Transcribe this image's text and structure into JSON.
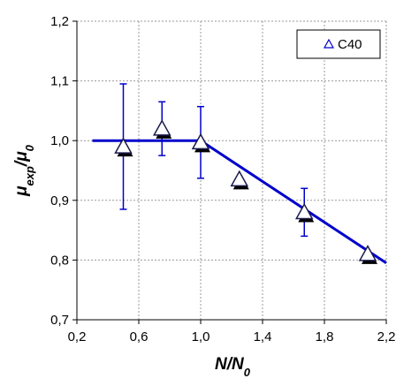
{
  "chart_data": {
    "type": "scatter",
    "xlabel": [
      "N/N",
      "0"
    ],
    "ylabel": [
      "μ",
      "exp",
      "/μ",
      "0"
    ],
    "series": [
      {
        "name": "C40",
        "color": "#0000cc",
        "x": [
          0.5,
          0.75,
          1.0,
          1.25,
          1.67,
          2.08
        ],
        "values": [
          0.99,
          1.02,
          0.997,
          0.935,
          0.88,
          0.81
        ],
        "errors": [
          0.105,
          0.045,
          0.06,
          null,
          0.04,
          null
        ]
      }
    ],
    "fit": {
      "x": [
        0.3,
        1.0,
        2.2
      ],
      "values": [
        1.0,
        1.0,
        0.795
      ],
      "color": "#0000cc"
    },
    "xlim": [
      0.2,
      2.2
    ],
    "xticks": [
      {
        "value": 0.2,
        "label": "0,2"
      },
      {
        "value": 0.6,
        "label": "0,6"
      },
      {
        "value": 1.0,
        "label": "1,0"
      },
      {
        "value": 1.4,
        "label": "1,4"
      },
      {
        "value": 1.8,
        "label": "1,8"
      },
      {
        "value": 2.2,
        "label": "2,2"
      }
    ],
    "ylim": [
      0.7,
      1.2
    ],
    "yticks": [
      {
        "value": 0.7,
        "label": "0,7"
      },
      {
        "value": 0.8,
        "label": "0,8"
      },
      {
        "value": 0.9,
        "label": "0,9"
      },
      {
        "value": 1.0,
        "label": "1,0"
      },
      {
        "value": 1.1,
        "label": "1,1"
      },
      {
        "value": 1.2,
        "label": "1,2"
      }
    ],
    "grid": true,
    "legend": "upper right"
  }
}
